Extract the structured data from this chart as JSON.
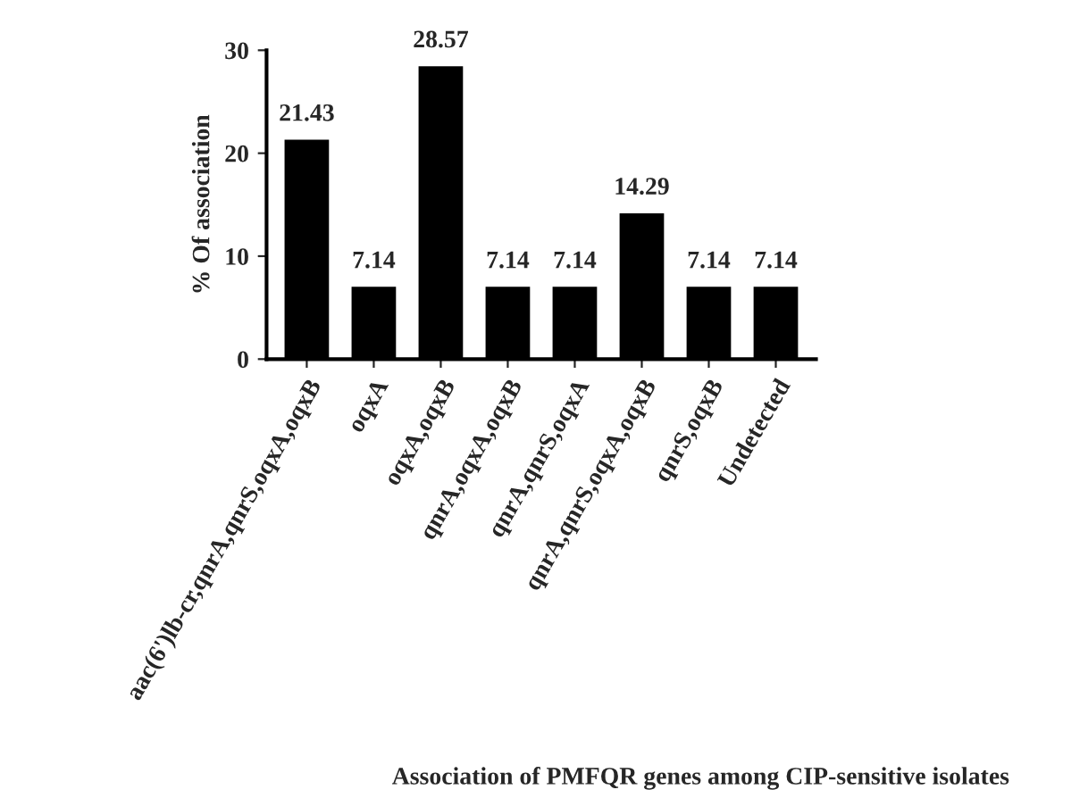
{
  "chart_data": {
    "type": "bar",
    "xlabel": "Association of PMFQR genes among CIP-sensitive isolates",
    "ylabel": "% Of association",
    "categories": [
      "aac(6')lb-cr,qnrA,qnrS,oqxA,oqxB",
      "oqxA",
      "oqxA,oqxB",
      "qnrA,oqxA,oqxB",
      "qnrA,qnrS,oqxA",
      "qnrA,qnrS,oqxA,oqxB",
      "qnrS,oqxB",
      "Undetected"
    ],
    "values": [
      21.43,
      7.14,
      28.57,
      7.14,
      7.14,
      14.29,
      7.14,
      7.14
    ],
    "color": "#000000",
    "ylim": [
      0,
      30
    ],
    "yticks": [
      0,
      10,
      20,
      30
    ],
    "data_labels": true,
    "grid": false,
    "legend": false
  }
}
